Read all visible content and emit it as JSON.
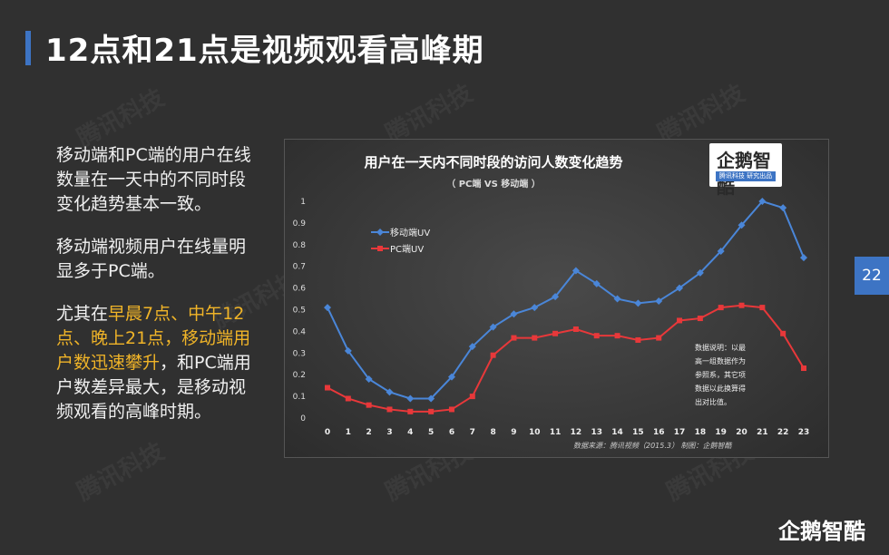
{
  "slide": {
    "title": "12点和21点是视频观看高峰期",
    "page_number": "22",
    "brand": "企鹅智酷",
    "watermark": "腾讯科技"
  },
  "left_text": {
    "p1": "移动端和PC端的用户在线数量在一天中的不同时段变化趋势基本一致。",
    "p2": "移动端视频用户在线量明显多于PC端。",
    "p3_a": "尤其在",
    "p3_hl": "早晨7点、中午12点、晚上21点，移动端用户数迅速攀升",
    "p3_b": "，和PC端用户数差异最大，是移动视频观看的高峰时期。"
  },
  "logo": {
    "main": "企鹅智酷",
    "sub": "腾讯科技 研究出品"
  },
  "colors": {
    "mobile": "#4a86d8",
    "pc": "#e8383a",
    "accent": "#3d74c4",
    "highlight": "#f0b428"
  },
  "chart_data": {
    "type": "line",
    "title": "用户在一天内不同时段的访问人数变化趋势",
    "subtitle": "（ PC端 VS 移动端 ）",
    "x": [
      "0",
      "1",
      "2",
      "3",
      "4",
      "5",
      "6",
      "7",
      "8",
      "9",
      "10",
      "11",
      "12",
      "13",
      "14",
      "15",
      "16",
      "17",
      "18",
      "19",
      "20",
      "21",
      "22",
      "23"
    ],
    "ylim": [
      0,
      1
    ],
    "yticks": [
      "0",
      "0.1",
      "0.2",
      "0.3",
      "0.4",
      "0.5",
      "0.6",
      "0.7",
      "0.8",
      "0.9",
      "1"
    ],
    "legend_position": "top-left",
    "series": [
      {
        "name": "移动端UV",
        "color": "#4a86d8",
        "values": [
          0.51,
          0.31,
          0.18,
          0.12,
          0.09,
          0.09,
          0.19,
          0.33,
          0.42,
          0.48,
          0.51,
          0.56,
          0.68,
          0.62,
          0.55,
          0.53,
          0.54,
          0.6,
          0.67,
          0.77,
          0.89,
          1.0,
          0.97,
          0.74
        ]
      },
      {
        "name": "PC端UV",
        "color": "#e8383a",
        "values": [
          0.14,
          0.09,
          0.06,
          0.04,
          0.03,
          0.03,
          0.04,
          0.1,
          0.29,
          0.37,
          0.37,
          0.39,
          0.41,
          0.38,
          0.38,
          0.36,
          0.37,
          0.45,
          0.46,
          0.51,
          0.52,
          0.51,
          0.39,
          0.23
        ]
      }
    ],
    "note_lines": [
      "数据说明：以最",
      "高一组数据作为",
      "参照系，其它项",
      "数据以此换算得",
      "出对比值。"
    ],
    "source": "数据来源：腾讯视频（2015.3）    制图：企鹅智酷"
  }
}
